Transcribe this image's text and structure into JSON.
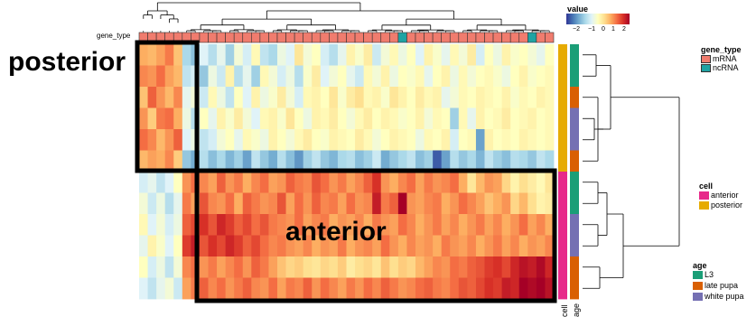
{
  "chart_data": {
    "type": "heatmap",
    "annotations": {
      "posterior": "posterior",
      "anterior": "anterior"
    },
    "column_annotation_label": "gene_type",
    "row_annotation_labels": [
      "cell",
      "age"
    ],
    "colorbar": {
      "title": "value",
      "ticks": [
        "−2",
        "−1",
        "0",
        "1",
        "2"
      ],
      "range": [
        -2.5,
        2.5
      ],
      "colors": [
        "#313695",
        "#4575b4",
        "#74add1",
        "#abd9e9",
        "#e0f3f8",
        "#ffffbf",
        "#fee090",
        "#fdae61",
        "#f46d43",
        "#d73027",
        "#a50026"
      ]
    },
    "legends": {
      "gene_type": {
        "title": "gene_type",
        "items": [
          {
            "label": "mRNA",
            "color": "#F07C6E"
          },
          {
            "label": "ncRNA",
            "color": "#1FA3A3"
          }
        ]
      },
      "cell": {
        "title": "cell",
        "items": [
          {
            "label": "anterior",
            "color": "#E7298A"
          },
          {
            "label": "posterior",
            "color": "#E6AB02"
          }
        ]
      },
      "age": {
        "title": "age",
        "items": [
          {
            "label": "L3",
            "color": "#1B9E77"
          },
          {
            "label": "late pupa",
            "color": "#D95F02"
          },
          {
            "label": "white pupa",
            "color": "#7570B3"
          }
        ]
      }
    },
    "n_rows": 12,
    "n_cols": 48,
    "col_gene_type": [
      "mRNA",
      "mRNA",
      "mRNA",
      "mRNA",
      "mRNA",
      "mRNA",
      "mRNA",
      "mRNA",
      "mRNA",
      "mRNA",
      "mRNA",
      "mRNA",
      "mRNA",
      "mRNA",
      "mRNA",
      "mRNA",
      "mRNA",
      "mRNA",
      "mRNA",
      "mRNA",
      "mRNA",
      "mRNA",
      "mRNA",
      "mRNA",
      "mRNA",
      "mRNA",
      "mRNA",
      "mRNA",
      "mRNA",
      "mRNA",
      "ncRNA",
      "mRNA",
      "mRNA",
      "mRNA",
      "mRNA",
      "mRNA",
      "mRNA",
      "mRNA",
      "mRNA",
      "mRNA",
      "mRNA",
      "mRNA",
      "mRNA",
      "mRNA",
      "mRNA",
      "ncRNA",
      "mRNA",
      "mRNA"
    ],
    "row_cell": [
      "posterior",
      "posterior",
      "posterior",
      "posterior",
      "posterior",
      "posterior",
      "anterior",
      "anterior",
      "anterior",
      "anterior",
      "anterior",
      "anterior"
    ],
    "row_age": [
      "L3",
      "L3",
      "late pupa",
      "white pupa",
      "white pupa",
      "late pupa",
      "L3",
      "L3",
      "white pupa",
      "white pupa",
      "late pupa",
      "late pupa"
    ],
    "values": [
      [
        1.0,
        0.9,
        1.1,
        1.4,
        0.8,
        -1.0,
        -1.3,
        -0.5,
        -0.9,
        -0.4,
        -1.1,
        -0.2,
        -0.6,
        0.1,
        -0.8,
        -1.0,
        -0.3,
        -0.5,
        0.4,
        -0.2,
        0.0,
        -0.6,
        -0.9,
        -0.4,
        0.2,
        -0.1,
        0.3,
        -0.7,
        -0.2,
        0.1,
        -0.3,
        0.0,
        -0.5,
        0.2,
        -0.1,
        -0.4,
        0.1,
        -0.2,
        0.3,
        -0.6,
        0.0,
        -0.3,
        0.2,
        -0.1,
        0.0,
        -0.2,
        -0.4,
        0.0
      ],
      [
        1.3,
        1.2,
        1.5,
        1.1,
        0.9,
        -0.8,
        -0.6,
        -1.2,
        -0.3,
        -0.7,
        0.2,
        -0.9,
        -0.4,
        -1.1,
        0.1,
        -0.2,
        -0.6,
        -0.3,
        -0.9,
        -0.1,
        0.3,
        -0.5,
        -0.2,
        0.0,
        -0.4,
        -0.7,
        0.1,
        -0.2,
        0.2,
        -0.3,
        0.0,
        -0.1,
        0.1,
        -0.4,
        0.0,
        0.2,
        -0.3,
        0.1,
        -0.2,
        0.0,
        0.1,
        -0.1,
        -0.3,
        0.0,
        0.2,
        -0.1,
        0.0,
        0.1
      ],
      [
        0.8,
        1.6,
        1.2,
        0.9,
        1.3,
        -0.4,
        -0.2,
        -0.7,
        0.1,
        -0.3,
        -0.8,
        0.0,
        -0.5,
        0.2,
        -0.3,
        -0.1,
        0.3,
        -0.2,
        -0.6,
        0.1,
        0.2,
        0.0,
        0.4,
        -0.1,
        0.3,
        0.5,
        0.1,
        0.2,
        -0.1,
        0.4,
        0.2,
        0.0,
        0.3,
        0.1,
        0.2,
        -0.4,
        -0.2,
        0.1,
        0.0,
        0.2,
        0.1,
        0.0,
        0.2,
        -0.1,
        0.1,
        0.0,
        0.2,
        0.1
      ],
      [
        1.2,
        0.7,
        1.4,
        1.5,
        1.0,
        -0.3,
        -0.9,
        0.0,
        -0.4,
        0.2,
        -0.1,
        0.3,
        -0.2,
        -0.5,
        0.1,
        0.2,
        -0.1,
        0.4,
        0.0,
        -0.3,
        0.2,
        0.1,
        0.3,
        0.0,
        -0.2,
        0.1,
        0.3,
        0.0,
        0.2,
        0.1,
        -0.1,
        0.0,
        0.2,
        -0.2,
        0.1,
        0.0,
        -1.1,
        0.1,
        -0.4,
        0.2,
        0.0,
        0.1,
        0.3,
        0.0,
        0.1,
        0.2,
        0.0,
        0.1
      ],
      [
        1.5,
        1.3,
        0.9,
        1.2,
        1.6,
        -0.5,
        -0.3,
        -0.8,
        -0.6,
        -0.2,
        0.0,
        -0.4,
        0.1,
        -0.1,
        -0.3,
        0.2,
        0.0,
        -0.2,
        0.1,
        0.3,
        0.0,
        -0.1,
        0.2,
        0.1,
        0.0,
        0.3,
        0.1,
        -0.2,
        0.0,
        0.2,
        0.1,
        0.0,
        -0.3,
        0.1,
        0.0,
        0.2,
        -0.6,
        0.0,
        0.1,
        -1.6,
        0.2,
        0.0,
        0.1,
        0.0,
        0.2,
        0.1,
        0.0,
        0.1
      ],
      [
        0.9,
        1.1,
        1.0,
        1.3,
        0.7,
        -1.2,
        -1.5,
        -0.9,
        -1.3,
        -1.0,
        -1.4,
        -1.1,
        -1.6,
        -0.8,
        -1.2,
        -1.5,
        -0.9,
        -1.3,
        -1.7,
        -1.1,
        -0.8,
        -1.2,
        -1.4,
        -1.0,
        -0.9,
        -1.3,
        -1.1,
        -0.7,
        -1.5,
        -1.2,
        -1.0,
        -0.8,
        -1.3,
        -1.1,
        -2.2,
        -1.6,
        -0.9,
        -1.2,
        -1.0,
        -1.4,
        -0.8,
        -1.1,
        -1.3,
        -0.9,
        -1.0,
        -1.2,
        -0.8,
        -1.0
      ],
      [
        -0.6,
        -0.4,
        -0.8,
        -0.5,
        0.0,
        1.2,
        1.5,
        1.3,
        1.1,
        1.6,
        1.2,
        1.4,
        1.0,
        1.3,
        1.5,
        1.1,
        1.2,
        1.6,
        1.4,
        1.3,
        1.7,
        1.5,
        1.2,
        1.4,
        1.1,
        1.3,
        1.6,
        2.0,
        1.2,
        1.0,
        1.3,
        1.5,
        1.1,
        1.4,
        1.2,
        1.3,
        1.5,
        1.0,
        0.4,
        0.9,
        1.2,
        1.1,
        0.6,
        0.2,
        0.5,
        0.3,
        0.1,
        0.4
      ],
      [
        -0.2,
        -0.7,
        -0.3,
        -0.9,
        -0.4,
        1.4,
        1.1,
        1.7,
        1.3,
        1.2,
        1.5,
        1.0,
        1.6,
        1.4,
        1.2,
        1.3,
        1.7,
        1.1,
        1.5,
        1.2,
        1.6,
        1.3,
        1.4,
        1.1,
        1.5,
        1.2,
        1.3,
        2.2,
        1.4,
        1.6,
        2.5,
        1.2,
        1.1,
        1.3,
        1.4,
        1.0,
        1.2,
        1.5,
        1.3,
        1.1,
        0.8,
        1.0,
        1.2,
        0.6,
        0.9,
        0.5,
        0.2,
        0.3
      ],
      [
        0.1,
        -0.5,
        -0.2,
        -0.6,
        -0.3,
        1.6,
        1.8,
        2.0,
        1.7,
        2.1,
        1.9,
        1.6,
        1.8,
        1.5,
        1.7,
        1.4,
        1.3,
        1.2,
        1.5,
        1.1,
        1.3,
        1.4,
        1.0,
        1.2,
        1.1,
        1.3,
        1.0,
        1.4,
        1.2,
        1.1,
        1.5,
        1.3,
        1.0,
        1.2,
        1.4,
        1.1,
        1.3,
        1.0,
        1.2,
        1.4,
        1.1,
        1.3,
        1.0,
        1.2,
        1.5,
        1.1,
        1.3,
        1.0
      ],
      [
        -0.4,
        0.2,
        -0.1,
        -0.5,
        0.0,
        1.9,
        2.2,
        1.7,
        2.0,
        1.8,
        2.1,
        1.9,
        1.6,
        1.8,
        1.5,
        1.3,
        1.4,
        1.2,
        1.1,
        1.3,
        1.0,
        1.2,
        1.1,
        1.4,
        1.0,
        1.2,
        1.3,
        1.1,
        1.5,
        1.2,
        1.0,
        1.3,
        1.1,
        1.2,
        1.0,
        1.4,
        1.2,
        1.1,
        1.3,
        1.0,
        1.2,
        1.4,
        1.1,
        1.3,
        1.0,
        1.2,
        1.1,
        1.3
      ],
      [
        0.0,
        -0.6,
        -0.3,
        -0.8,
        -0.2,
        1.3,
        1.5,
        1.2,
        1.4,
        1.1,
        1.3,
        1.5,
        1.2,
        1.6,
        1.4,
        1.1,
        0.8,
        0.6,
        0.7,
        0.5,
        0.4,
        0.6,
        0.5,
        0.7,
        0.3,
        0.5,
        0.6,
        0.4,
        0.8,
        0.5,
        0.7,
        0.6,
        0.9,
        1.1,
        1.3,
        1.2,
        1.5,
        1.4,
        1.6,
        1.7,
        1.9,
        2.0,
        1.8,
        2.1,
        2.3,
        2.2,
        2.4,
        2.1
      ],
      [
        -0.5,
        -0.8,
        -0.4,
        -0.2,
        -0.7,
        1.1,
        1.4,
        1.6,
        1.3,
        1.5,
        1.2,
        1.4,
        1.6,
        1.3,
        1.2,
        1.5,
        1.1,
        1.4,
        1.3,
        1.6,
        1.2,
        1.5,
        1.3,
        1.1,
        1.4,
        1.2,
        1.5,
        1.3,
        1.6,
        1.4,
        1.2,
        1.3,
        1.5,
        1.6,
        1.4,
        1.3,
        1.5,
        1.7,
        1.6,
        1.8,
        2.0,
        1.9,
        2.2,
        2.1,
        2.5,
        2.4,
        2.6,
        2.3
      ]
    ]
  }
}
